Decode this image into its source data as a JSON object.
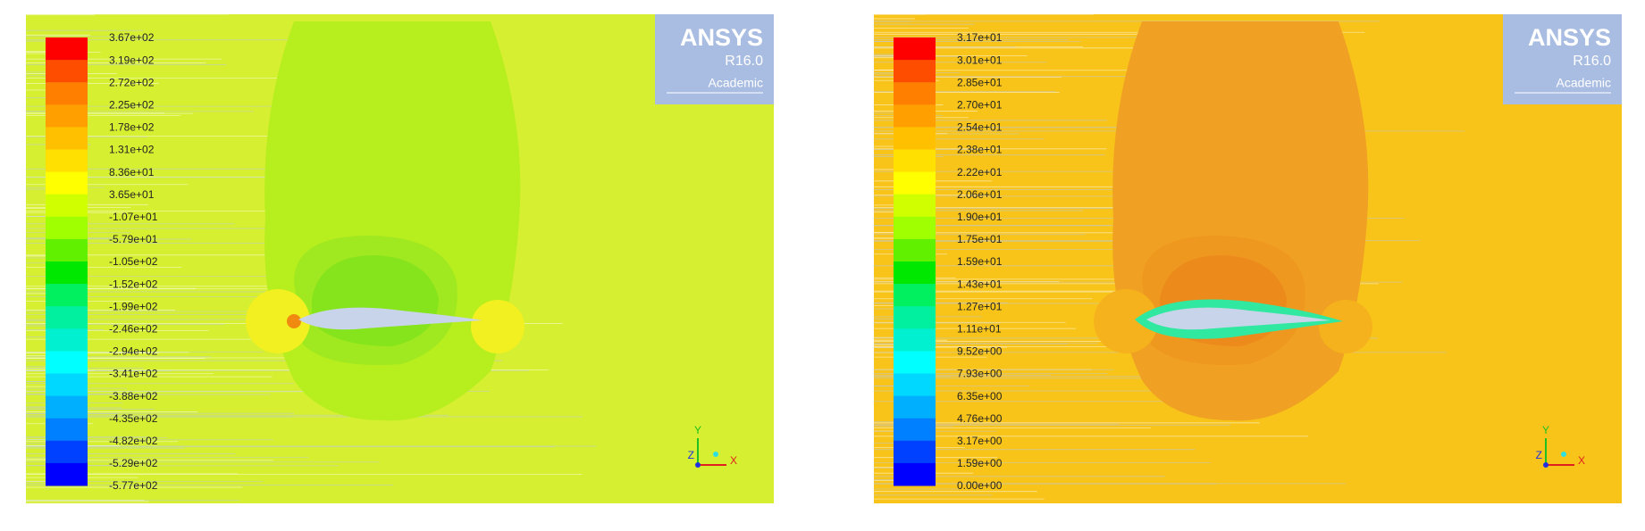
{
  "panels": [
    {
      "colorbar_labels": [
        "3.67e+02",
        "3.19e+02",
        "2.72e+02",
        "2.25e+02",
        "1.78e+02",
        "1.31e+02",
        "8.36e+01",
        "3.65e+01",
        "-1.07e+01",
        "-5.79e+01",
        "-1.05e+02",
        "-1.52e+02",
        "-1.99e+02",
        "-2.46e+02",
        "-2.94e+02",
        "-3.41e+02",
        "-3.88e+02",
        "-4.35e+02",
        "-4.82e+02",
        "-5.29e+02",
        "-5.77e+02"
      ],
      "logo": {
        "brand": "ANSYS",
        "version": "R16.0",
        "edition": "Academic"
      },
      "axes": {
        "y": "Y",
        "z": "Z",
        "x": "X"
      }
    },
    {
      "colorbar_labels": [
        "3.17e+01",
        "3.01e+01",
        "2.85e+01",
        "2.70e+01",
        "2.54e+01",
        "2.38e+01",
        "2.22e+01",
        "2.06e+01",
        "1.90e+01",
        "1.75e+01",
        "1.59e+01",
        "1.43e+01",
        "1.27e+01",
        "1.11e+01",
        "9.52e+00",
        "7.93e+00",
        "6.35e+00",
        "4.76e+00",
        "3.17e+00",
        "1.59e+00",
        "0.00e+00"
      ],
      "logo": {
        "brand": "ANSYS",
        "version": "R16.0",
        "edition": "Academic"
      },
      "axes": {
        "y": "Y",
        "z": "Z",
        "x": "X"
      }
    }
  ]
}
